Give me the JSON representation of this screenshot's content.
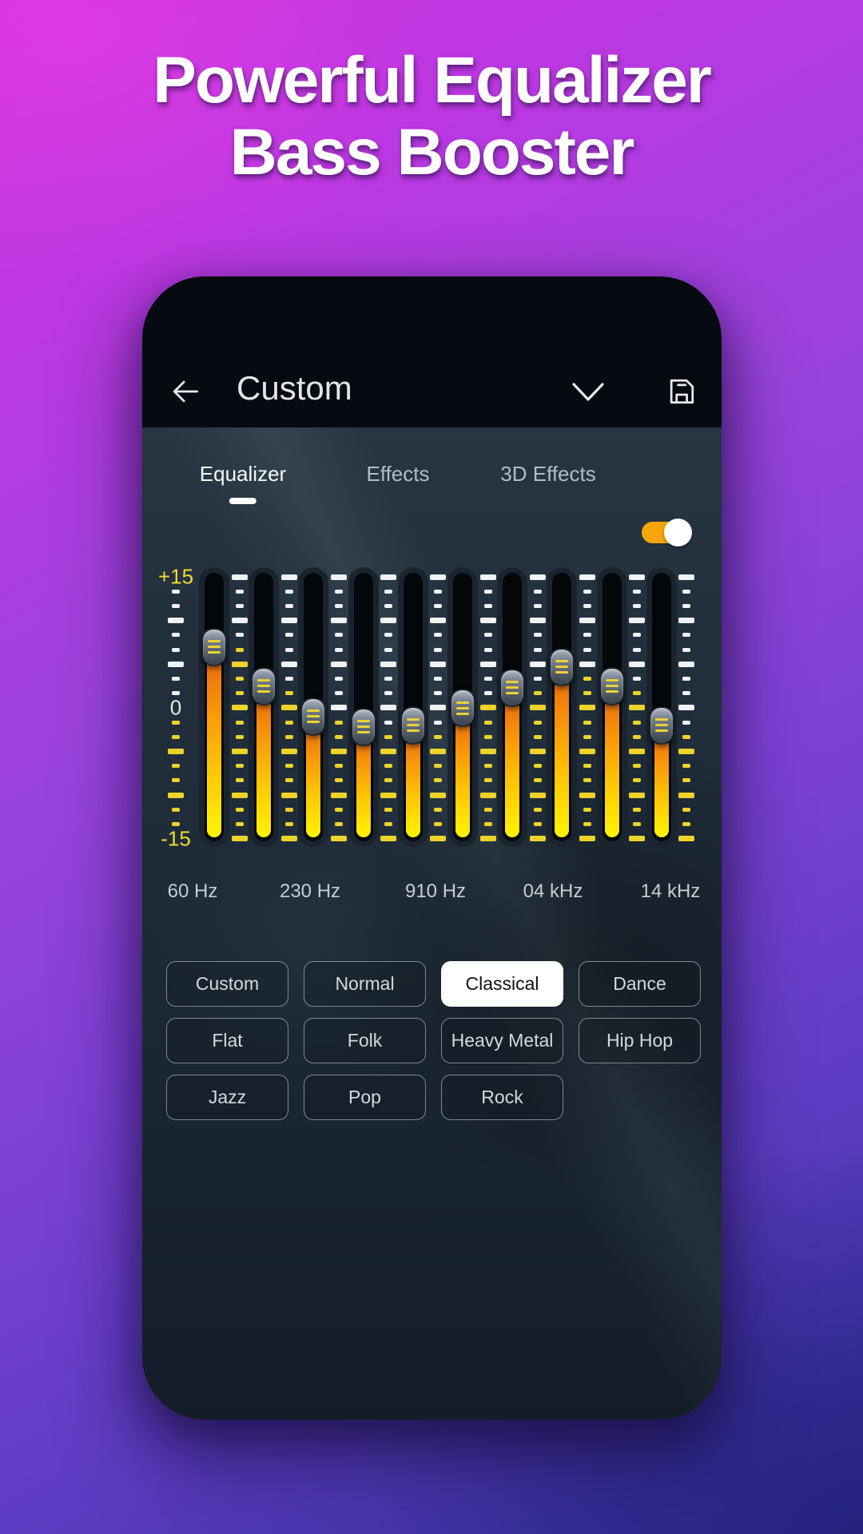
{
  "hero": {
    "title_line1": "Powerful Equalizer",
    "title_line2": "Bass Booster"
  },
  "phone": {
    "header": {
      "back_icon": "arrow-left",
      "title": "Custom",
      "dropdown_icon": "chevron-down",
      "save_icon": "save-floppy"
    },
    "tabs": [
      {
        "label": "Equalizer",
        "active": true
      },
      {
        "label": "Effects",
        "active": false
      },
      {
        "label": "3D Effects",
        "active": false
      }
    ],
    "eq_toggle": {
      "enabled": true
    },
    "equalizer": {
      "scale_labels": {
        "max": "+15",
        "zero": "0",
        "min": "-15"
      },
      "gain_range": [
        -15,
        15
      ],
      "band_gains_db": [
        7,
        2.5,
        -1,
        -2.2,
        -2,
        0,
        2.3,
        4.7,
        2.5,
        -2
      ],
      "freq_axis_labels": [
        "60 Hz",
        "230 Hz",
        "910 Hz",
        "04 kHz",
        "14 kHz"
      ]
    },
    "presets": [
      {
        "label": "Custom",
        "selected": false
      },
      {
        "label": "Normal",
        "selected": false
      },
      {
        "label": "Classical",
        "selected": true
      },
      {
        "label": "Dance",
        "selected": false
      },
      {
        "label": "Flat",
        "selected": false
      },
      {
        "label": "Folk",
        "selected": false
      },
      {
        "label": "Heavy Metal",
        "selected": false
      },
      {
        "label": "Hip Hop",
        "selected": false
      },
      {
        "label": "Jazz",
        "selected": false
      },
      {
        "label": "Pop",
        "selected": false
      },
      {
        "label": "Rock",
        "selected": false
      }
    ],
    "colors": {
      "toggle_orange": "#F7A60A",
      "tick_white": "#F0F2F3",
      "tick_yellow": "#EDD32A",
      "scale_label_yellow": "#F0DC35",
      "scale_label_zero": "#E9E6D5",
      "slider_fill_top": "#E5610E",
      "slider_fill_bottom": "#FFF303",
      "header_bg": "#060B11",
      "active_preset_bg": "#FFFFFF"
    }
  }
}
